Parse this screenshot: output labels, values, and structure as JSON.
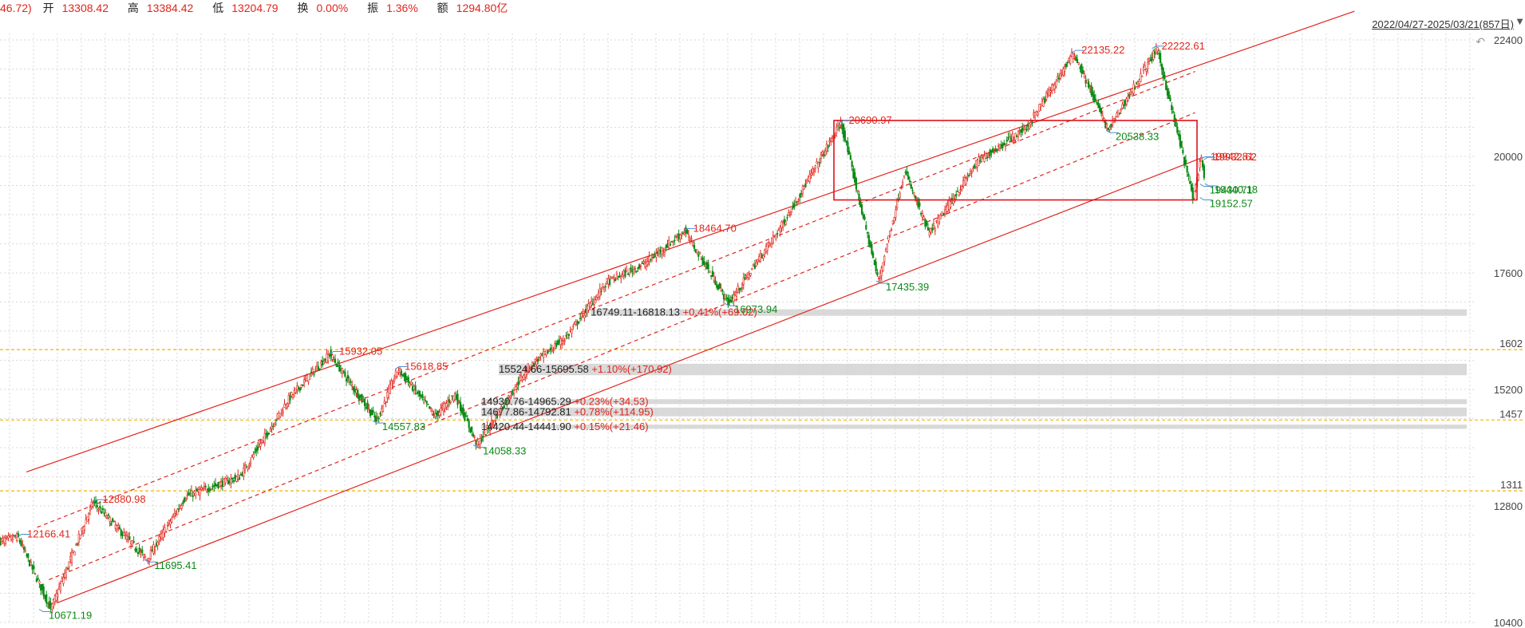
{
  "header": {
    "change": "46.72)",
    "open_label": "开",
    "open": "13308.42",
    "high_label": "高",
    "high": "13384.42",
    "low_label": "低",
    "low": "13204.79",
    "turnover_label": "换",
    "turnover": "0.00%",
    "amplitude_label": "振",
    "amplitude": "1.36%",
    "amount_label": "额",
    "amount": "1294.80亿"
  },
  "range_selector": {
    "label": "2022/04/27-2025/03/21(857日)"
  },
  "icons": {
    "undo": "undo-icon",
    "dropdown": "triangle-down-icon"
  },
  "colors": {
    "up": "#e0251b",
    "down": "#0b8a16",
    "channel": "#e0251b",
    "level": "#f0b400",
    "zone": "#cccccc"
  },
  "chart_data": {
    "type": "candlestick",
    "date_range": [
      "2022-04-27",
      "2025-03-21"
    ],
    "bar_count": 857,
    "y_axis": {
      "ylim": [
        10400,
        22400
      ],
      "ticks": [
        22400,
        20000,
        17600,
        15200,
        12800,
        10400
      ],
      "level_tags": [
        "1602",
        "1457",
        "1311"
      ],
      "levels": [
        16020,
        14570,
        13110
      ]
    },
    "grid": true,
    "path_points": [
      {
        "x": 0,
        "y": 12070
      },
      {
        "x": 18,
        "y": 12166.41
      },
      {
        "x": 52,
        "y": 10671.19
      },
      {
        "x": 95,
        "y": 12880.98
      },
      {
        "x": 150,
        "y": 11695.41
      },
      {
        "x": 190,
        "y": 13000
      },
      {
        "x": 245,
        "y": 13400
      },
      {
        "x": 295,
        "y": 15000
      },
      {
        "x": 337,
        "y": 15932.05
      },
      {
        "x": 385,
        "y": 14557.83
      },
      {
        "x": 407,
        "y": 15618.85
      },
      {
        "x": 445,
        "y": 14650
      },
      {
        "x": 465,
        "y": 15100
      },
      {
        "x": 488,
        "y": 14058.33
      },
      {
        "x": 540,
        "y": 15650
      },
      {
        "x": 580,
        "y": 16300
      },
      {
        "x": 620,
        "y": 17400
      },
      {
        "x": 660,
        "y": 17800
      },
      {
        "x": 700,
        "y": 18464.7
      },
      {
        "x": 745,
        "y": 16973.94
      },
      {
        "x": 800,
        "y": 18600
      },
      {
        "x": 860,
        "y": 20690.97
      },
      {
        "x": 898,
        "y": 17435.39
      },
      {
        "x": 925,
        "y": 19700
      },
      {
        "x": 950,
        "y": 18400
      },
      {
        "x": 1000,
        "y": 19900
      },
      {
        "x": 1050,
        "y": 20600
      },
      {
        "x": 1098,
        "y": 22135.22
      },
      {
        "x": 1133,
        "y": 20538.33
      },
      {
        "x": 1183,
        "y": 22222.61
      },
      {
        "x": 1220,
        "y": 19152.57
      },
      {
        "x": 1228,
        "y": 19942.81
      },
      {
        "x": 1232,
        "y": 19470
      }
    ],
    "annotations": [
      {
        "text": "12166.41",
        "kind": "high",
        "x": 18,
        "y": 12166.41
      },
      {
        "text": "10671.19",
        "kind": "low",
        "x": 40,
        "y": 10671.19
      },
      {
        "text": "12880.98",
        "kind": "high",
        "x": 95,
        "y": 12880.98
      },
      {
        "text": "11695.41",
        "kind": "low",
        "x": 148,
        "y": 11695.41
      },
      {
        "text": "15932.05",
        "kind": "high",
        "x": 337,
        "y": 15932.05
      },
      {
        "text": "14557.83",
        "kind": "low",
        "x": 381,
        "y": 14557.83
      },
      {
        "text": "15618.85",
        "kind": "high",
        "x": 404,
        "y": 15618.85
      },
      {
        "text": "14058.33",
        "kind": "low",
        "x": 484,
        "y": 14058.33
      },
      {
        "text": "18464.70",
        "kind": "high",
        "x": 699,
        "y": 18464.7
      },
      {
        "text": "16973.94",
        "kind": "low",
        "x": 741,
        "y": 16973.94
      },
      {
        "text": "20690.97",
        "kind": "high",
        "x": 858,
        "y": 20690.97
      },
      {
        "text": "17435.39",
        "kind": "low",
        "x": 896,
        "y": 17435.39
      },
      {
        "text": "22135.22",
        "kind": "high",
        "x": 1096,
        "y": 22135.22
      },
      {
        "text": "20538.33",
        "kind": "low",
        "x": 1131,
        "y": 20538.33
      },
      {
        "text": "22222.61",
        "kind": "high",
        "x": 1178,
        "y": 22222.61
      },
      {
        "text": "19152.57",
        "kind": "low",
        "x": 1227,
        "y": 19152.57
      },
      {
        "text": "19942.81",
        "kind": "high",
        "x": 1228,
        "y": 19942.81
      },
      {
        "text": "19932.62",
        "kind": "high",
        "x": 1231,
        "y": 19932.62
      },
      {
        "text": "19430.71",
        "kind": "low",
        "x": 1227,
        "y": 19430.71
      },
      {
        "text": "19440.18",
        "kind": "low",
        "x": 1232,
        "y": 19440.18
      }
    ],
    "gap_zones": [
      {
        "range": "16749.11-16818.13",
        "pct": "+0.41%(+69.02)",
        "low": 16749.11,
        "high": 16818.13,
        "x": 604
      },
      {
        "range": "15524.66-15695.58",
        "pct": "+1.10%(+170.92)",
        "low": 15524.66,
        "high": 15695.58,
        "x": 510
      },
      {
        "range": "14930.76-14965.29",
        "pct": "+0.23%(+34.53)",
        "low": 14930.76,
        "high": 14965.29,
        "x": 492
      },
      {
        "range": "14677.86-14792.81",
        "pct": "+0.78%(+114.95)",
        "low": 14677.86,
        "high": 14792.81,
        "x": 492
      },
      {
        "range": "14420.44-14441.90",
        "pct": "+0.15%(+21.46)",
        "low": 14420.44,
        "high": 14441.9,
        "x": 492
      }
    ],
    "channel": {
      "upper": [
        [
          27,
          13500
        ],
        [
          1385,
          22990
        ]
      ],
      "mid_upper": [
        [
          38,
          12360
        ],
        [
          1222,
          21750
        ]
      ],
      "mid_lower": [
        [
          50,
          11280
        ],
        [
          1222,
          20900
        ]
      ],
      "lower": [
        [
          58,
          10800
        ],
        [
          1230,
          19980
        ]
      ]
    },
    "box": {
      "x0": 1045,
      "x1": 1500,
      "y_low": 19152.57,
      "y_high": 20690.97
    }
  }
}
